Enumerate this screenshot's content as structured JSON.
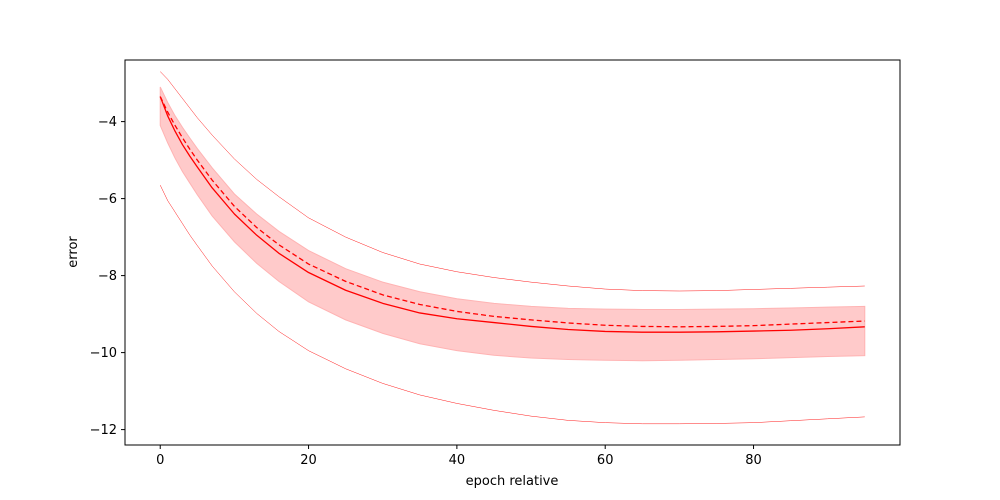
{
  "chart_data": {
    "type": "line",
    "xlabel": "epoch relative",
    "ylabel": "error",
    "xlim": [
      -4.75,
      99.75
    ],
    "ylim": [
      -12.4,
      -2.4
    ],
    "xticks": [
      0,
      20,
      40,
      60,
      80
    ],
    "yticks": [
      -12,
      -10,
      -8,
      -6,
      -4
    ],
    "grid": false,
    "x": [
      0,
      1,
      2,
      3,
      4,
      5,
      7,
      10,
      13,
      16,
      20,
      25,
      30,
      35,
      40,
      45,
      50,
      55,
      60,
      65,
      70,
      75,
      80,
      85,
      90,
      95
    ],
    "series": [
      {
        "role": "mean",
        "style": "solid",
        "color": "#ff0000",
        "values": [
          -3.35,
          -3.85,
          -4.25,
          -4.6,
          -4.9,
          -5.18,
          -5.72,
          -6.4,
          -6.95,
          -7.42,
          -7.92,
          -8.38,
          -8.72,
          -8.97,
          -9.12,
          -9.22,
          -9.32,
          -9.4,
          -9.45,
          -9.47,
          -9.47,
          -9.46,
          -9.44,
          -9.42,
          -9.38,
          -9.33
        ]
      },
      {
        "role": "median",
        "style": "dashed",
        "color": "#ff0000",
        "values": [
          -3.35,
          -3.75,
          -4.1,
          -4.42,
          -4.72,
          -5.0,
          -5.52,
          -6.2,
          -6.75,
          -7.2,
          -7.7,
          -8.15,
          -8.5,
          -8.75,
          -8.93,
          -9.06,
          -9.15,
          -9.23,
          -9.29,
          -9.32,
          -9.33,
          -9.32,
          -9.3,
          -9.26,
          -9.22,
          -9.18
        ]
      },
      {
        "role": "band-upper",
        "style": "fill",
        "color": "#ffcaca",
        "values": [
          -3.1,
          -3.5,
          -3.85,
          -4.15,
          -4.43,
          -4.7,
          -5.2,
          -5.88,
          -6.4,
          -6.85,
          -7.35,
          -7.82,
          -8.17,
          -8.42,
          -8.6,
          -8.72,
          -8.8,
          -8.85,
          -8.87,
          -8.88,
          -8.88,
          -8.87,
          -8.86,
          -8.84,
          -8.82,
          -8.8
        ]
      },
      {
        "role": "band-lower",
        "style": "fill",
        "color": "#ffcaca",
        "values": [
          -4.1,
          -4.55,
          -4.95,
          -5.3,
          -5.6,
          -5.9,
          -6.45,
          -7.12,
          -7.68,
          -8.15,
          -8.68,
          -9.15,
          -9.5,
          -9.77,
          -9.95,
          -10.07,
          -10.14,
          -10.18,
          -10.2,
          -10.21,
          -10.2,
          -10.18,
          -10.16,
          -10.13,
          -10.1,
          -10.08
        ]
      },
      {
        "role": "max",
        "style": "thin",
        "color": "#ff0000",
        "values": [
          -2.7,
          -2.9,
          -3.15,
          -3.4,
          -3.65,
          -3.9,
          -4.35,
          -4.97,
          -5.5,
          -5.95,
          -6.5,
          -7.0,
          -7.4,
          -7.7,
          -7.9,
          -8.05,
          -8.17,
          -8.27,
          -8.35,
          -8.39,
          -8.4,
          -8.39,
          -8.36,
          -8.33,
          -8.3,
          -8.27
        ]
      },
      {
        "role": "min",
        "style": "thin",
        "color": "#ff0000",
        "values": [
          -5.65,
          -6.05,
          -6.35,
          -6.65,
          -6.95,
          -7.22,
          -7.75,
          -8.42,
          -8.98,
          -9.45,
          -9.95,
          -10.42,
          -10.8,
          -11.1,
          -11.32,
          -11.5,
          -11.65,
          -11.76,
          -11.82,
          -11.85,
          -11.85,
          -11.84,
          -11.82,
          -11.77,
          -11.72,
          -11.67
        ]
      }
    ]
  }
}
